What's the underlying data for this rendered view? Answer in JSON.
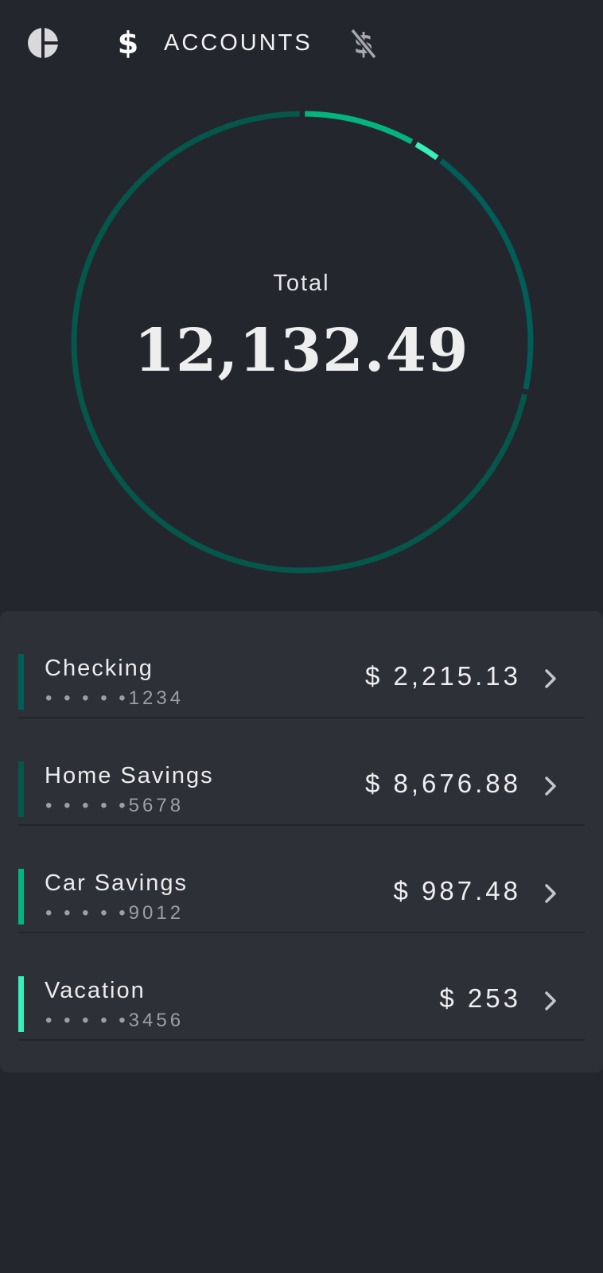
{
  "tabs": {
    "overview_icon": "pie-chart-icon",
    "accounts_symbol": "$",
    "accounts_label": "ACCOUNTS",
    "bills_icon": "no-money-icon"
  },
  "summary": {
    "label": "Total",
    "value": "12,132.49"
  },
  "accounts": [
    {
      "name": "Checking",
      "mask": "• • • • •1234",
      "amount": "$ 2,215.13",
      "color": "#005d57"
    },
    {
      "name": "Home Savings",
      "mask": "• • • • •5678",
      "amount": "$ 8,676.88",
      "color": "#04574a"
    },
    {
      "name": "Car Savings",
      "mask": "• • • • •9012",
      "amount": "$ 987.48",
      "color": "#03b57d"
    },
    {
      "name": "Vacation",
      "mask": "• • • • •3456",
      "amount": "$ 253",
      "color": "#37efba"
    }
  ],
  "chart_data": {
    "type": "pie",
    "categories": [
      "Checking",
      "Home Savings",
      "Car Savings",
      "Vacation"
    ],
    "values": [
      2215.13,
      8676.88,
      987.48,
      253
    ],
    "total": 12132.49,
    "colors": [
      "#005d57",
      "#04574a",
      "#03b57d",
      "#37efba"
    ]
  }
}
